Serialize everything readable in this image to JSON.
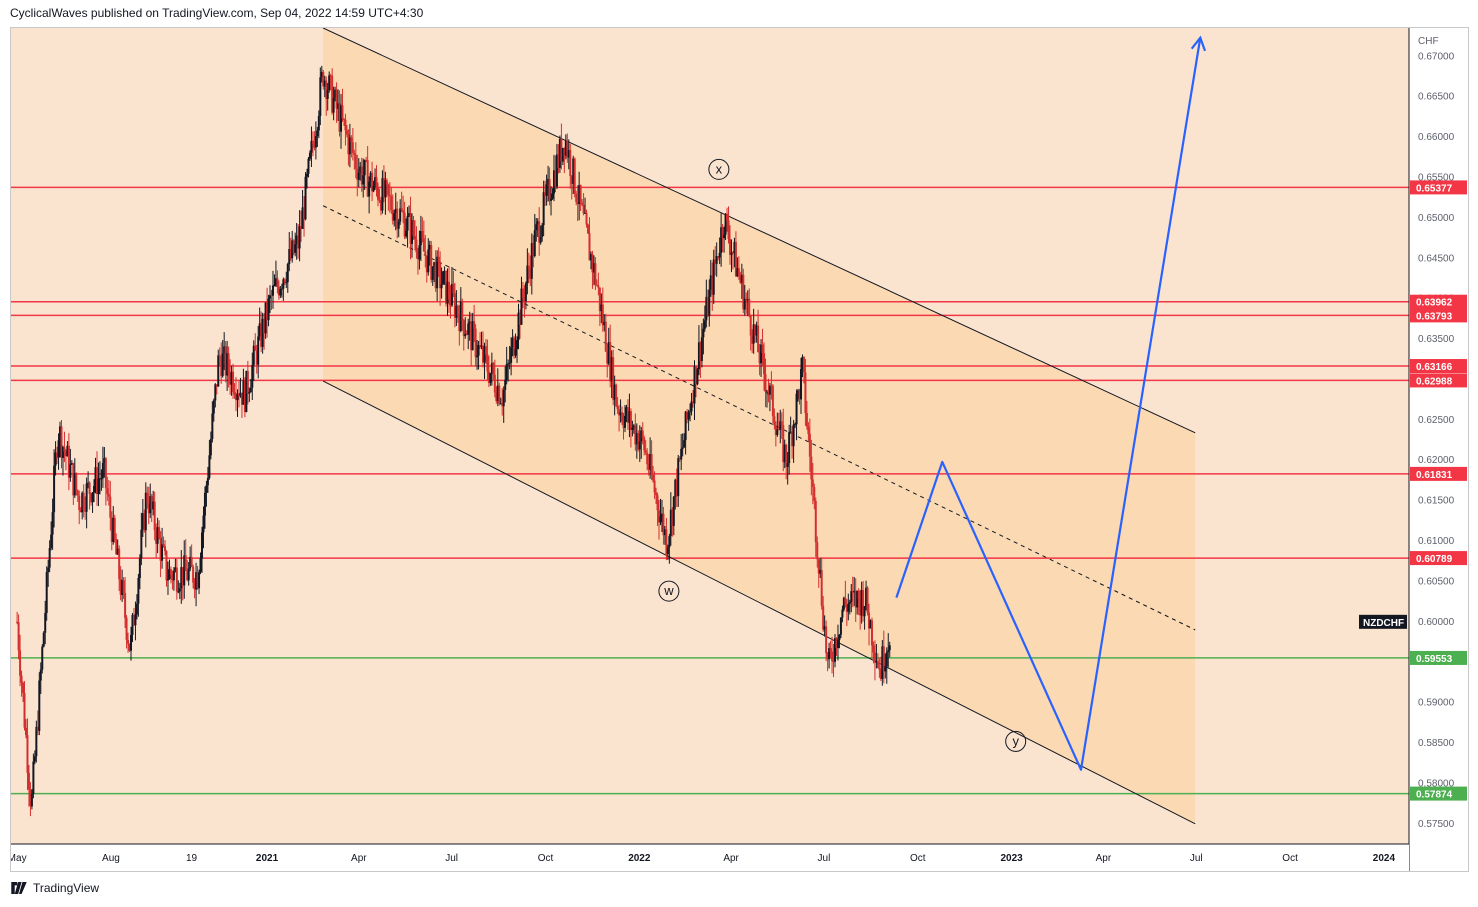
{
  "header": {
    "text": "CyclicalWaves published on TradingView.com, Sep 04, 2022 14:59 UTC+4:30"
  },
  "footer": {
    "brand": "TradingView",
    "icon": "tradingview-logo-icon"
  },
  "chart_data": {
    "type": "candlestick",
    "symbol": "NZDCHF",
    "currency": "CHF",
    "ylim": [
      0.5725,
      0.6735
    ],
    "y_ticks": [
      "0.67000",
      "0.66500",
      "0.66000",
      "0.65500",
      "0.65000",
      "0.64500",
      "0.64000",
      "0.63500",
      "0.63000",
      "0.62500",
      "0.62000",
      "0.61500",
      "0.61000",
      "0.60500",
      "0.60000",
      "0.59500",
      "0.59000",
      "0.58500",
      "0.58000",
      "0.57500"
    ],
    "x_ticks": [
      {
        "label": "May",
        "major": false
      },
      {
        "label": "Aug",
        "major": false
      },
      {
        "label": "19",
        "major": false
      },
      {
        "label": "2021",
        "major": true
      },
      {
        "label": "Apr",
        "major": false
      },
      {
        "label": "Jul",
        "major": false
      },
      {
        "label": "Oct",
        "major": false
      },
      {
        "label": "2022",
        "major": true
      },
      {
        "label": "Apr",
        "major": false
      },
      {
        "label": "Jul",
        "major": false
      },
      {
        "label": "Oct",
        "major": false
      },
      {
        "label": "2023",
        "major": true
      },
      {
        "label": "Apr",
        "major": false
      },
      {
        "label": "Jul",
        "major": false
      },
      {
        "label": "Oct",
        "major": false
      },
      {
        "label": "2024",
        "major": true
      }
    ],
    "price_path": [
      [
        "2020-05-01",
        0.6
      ],
      [
        "2020-05-15",
        0.577
      ],
      [
        "2020-06-10",
        0.624
      ],
      [
        "2020-07-01",
        0.615
      ],
      [
        "2020-07-25",
        0.6185
      ],
      [
        "2020-08-20",
        0.5965
      ],
      [
        "2020-09-05",
        0.616
      ],
      [
        "2020-09-25",
        0.606
      ],
      [
        "2020-10-25",
        0.606
      ],
      [
        "2020-11-15",
        0.633
      ],
      [
        "2020-12-10",
        0.628
      ],
      [
        "2021-01-05",
        0.64
      ],
      [
        "2021-02-01",
        0.647
      ],
      [
        "2021-02-25",
        0.668
      ],
      [
        "2021-04-01",
        0.656
      ],
      [
        "2021-05-15",
        0.65
      ],
      [
        "2021-07-01",
        0.64
      ],
      [
        "2021-08-20",
        0.628
      ],
      [
        "2021-09-20",
        0.647
      ],
      [
        "2021-10-20",
        0.66
      ],
      [
        "2021-11-20",
        0.642
      ],
      [
        "2021-12-10",
        0.627
      ],
      [
        "2022-01-05",
        0.622
      ],
      [
        "2022-01-28",
        0.61
      ],
      [
        "2022-02-25",
        0.631
      ],
      [
        "2022-03-25",
        0.65
      ],
      [
        "2022-05-01",
        0.632
      ],
      [
        "2022-05-25",
        0.62
      ],
      [
        "2022-06-10",
        0.631
      ],
      [
        "2022-06-25",
        0.609
      ],
      [
        "2022-07-05",
        0.594
      ],
      [
        "2022-07-20",
        0.602
      ],
      [
        "2022-08-10",
        0.603
      ],
      [
        "2022-08-25",
        0.594
      ],
      [
        "2022-09-04",
        0.599
      ]
    ],
    "levels": [
      {
        "value": 0.65377,
        "label": "0.65377",
        "color": "#f23645"
      },
      {
        "value": 0.63962,
        "label": "0.63962",
        "color": "#f23645"
      },
      {
        "value": 0.63793,
        "label": "0.63793",
        "color": "#f23645"
      },
      {
        "value": 0.63166,
        "label": "0.63166",
        "color": "#f23645"
      },
      {
        "value": 0.62988,
        "label": "0.62988",
        "color": "#f23645"
      },
      {
        "value": 0.61831,
        "label": "0.61831",
        "color": "#f23645"
      },
      {
        "value": 0.60789,
        "label": "0.60789",
        "color": "#f23645"
      },
      {
        "value": 0.59553,
        "label": "0.59553",
        "color": "#4caf50"
      },
      {
        "value": 0.57874,
        "label": "0.57874",
        "color": "#4caf50"
      }
    ],
    "channel": {
      "upper": [
        [
          "2021-02-25",
          0.6735
        ],
        [
          "2023-06-30",
          0.6234
        ]
      ],
      "middle": [
        [
          "2021-02-25",
          0.6515
        ],
        [
          "2023-06-30",
          0.599
        ]
      ],
      "lower": [
        [
          "2021-02-25",
          0.6298
        ],
        [
          "2023-06-30",
          0.575
        ]
      ],
      "fill": "#fbd5aa"
    },
    "projection": {
      "color": "#2962ff",
      "points": [
        [
          "2022-09-10",
          0.603
        ],
        [
          "2022-10-25",
          0.6198
        ],
        [
          "2023-03-10",
          0.5817
        ],
        [
          "2023-07-05",
          0.6723
        ]
      ]
    },
    "wave_labels": [
      {
        "label": "x",
        "date": "2022-03-20",
        "value": 0.656
      },
      {
        "label": "w",
        "date": "2022-01-30",
        "value": 0.6038
      },
      {
        "label": "y",
        "date": "2023-01-05",
        "value": 0.5852
      }
    ],
    "current_price_label": "NZDCHF",
    "current_price": 0.6,
    "background": "#fbe4cf"
  }
}
